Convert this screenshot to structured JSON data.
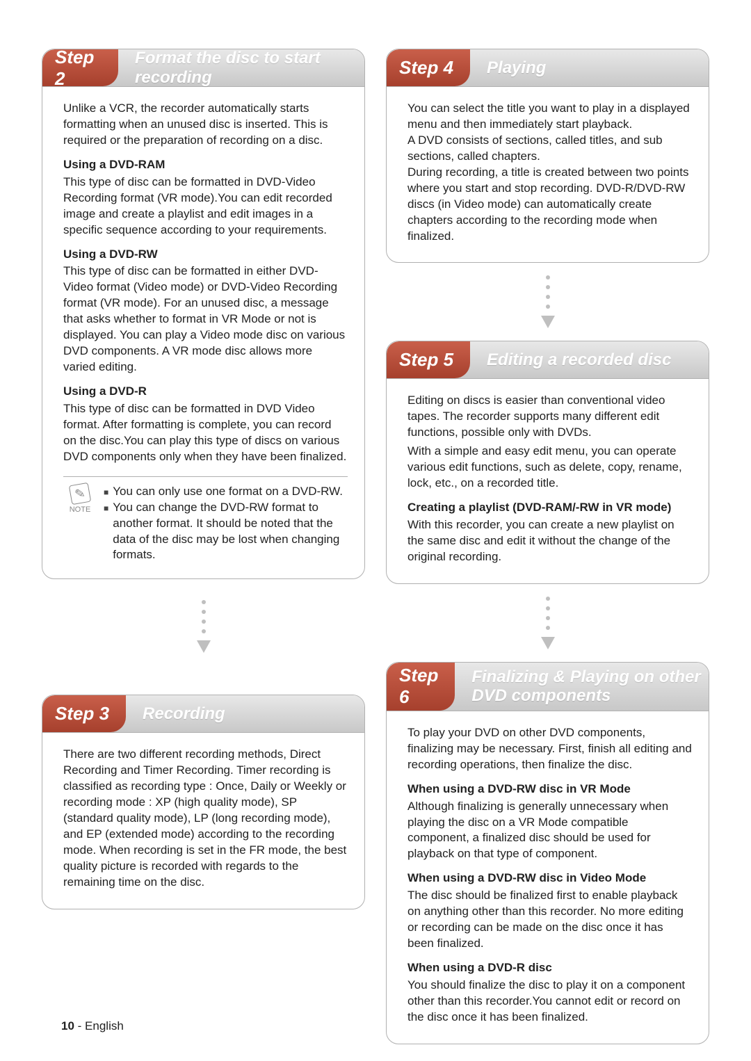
{
  "colors": {
    "tab_gradient_top": "#c95f4a",
    "tab_gradient_bottom": "#a6402d",
    "header_gradient_top": "#e8e8e8",
    "header_gradient_bottom": "#c8c8c8",
    "border": "#b0b0b0",
    "arrow": "#bfbfbf",
    "text": "#222222"
  },
  "typography": {
    "body_fontsize_pt": 13,
    "step_number_fontsize_pt": 20,
    "step_title_fontsize_pt": 18,
    "font_family": "Arial"
  },
  "step2": {
    "tab": "Step 2",
    "title": "Format the disc to start recording",
    "intro": "Unlike a VCR, the recorder automatically starts formatting when an unused disc is inserted. This is required or the preparation of recording on a disc.",
    "sec1_head": "Using a DVD-RAM",
    "sec1_body": "This type of disc can be formatted in DVD-Video Recording format (VR mode).You can edit recorded image and create a playlist and edit images in a specific sequence according to your requirements.",
    "sec2_head": "Using a DVD-RW",
    "sec2_body": "This type of disc can be formatted in either DVD-Video format (Video mode) or DVD-Video Recording format (VR mode). For an unused disc, a message that asks whether to format in VR Mode or not is displayed. You can play a Video mode disc on various DVD components. A VR mode disc allows more varied editing.",
    "sec3_head": "Using a DVD-R",
    "sec3_body": "This type of disc can be formatted in DVD Video format. After formatting is complete, you can record on the disc.You can play this type of discs on various DVD components only when they have been finalized.",
    "note_label": "NOTE",
    "note1": "You can only use one format on a DVD-RW.",
    "note2": "You can change the DVD-RW format to another format. It should be noted that the data of the disc may be lost when changing formats."
  },
  "step3": {
    "tab": "Step 3",
    "title": "Recording",
    "body": "There are two different recording methods, Direct Recording and Timer Recording. Timer recording is classified as recording type : Once, Daily or Weekly or recording mode : XP (high quality mode), SP (standard quality mode), LP (long recording mode), and EP (extended mode) according to the recording mode. When recording is set in the FR mode, the best quality picture is recorded with regards to the remaining time on the disc."
  },
  "step4": {
    "tab": "Step 4",
    "title": "Playing",
    "body": "You can select the title you want to play in a displayed menu and then immediately start playback.\nA DVD consists of sections, called titles, and sub sections, called chapters.\nDuring recording, a title is created between two points where you start and stop recording. DVD-R/DVD-RW discs (in Video mode) can automatically create chapters according to the recording mode when finalized."
  },
  "step5": {
    "tab": "Step 5",
    "title": "Editing a recorded disc",
    "p1": "Editing on discs is easier than conventional video tapes. The recorder supports many different edit functions, possible only with DVDs.",
    "p2": "With a simple and easy edit menu, you can operate various edit functions, such as delete, copy, rename, lock, etc., on a recorded title.",
    "sec_head": "Creating a playlist (DVD-RAM/-RW in VR mode)",
    "sec_body": "With this recorder, you can create a new playlist on the same disc and edit it without the change of the original recording."
  },
  "step6": {
    "tab": "Step 6",
    "title": "Finalizing & Playing on other DVD components",
    "intro": "To play your DVD on other DVD components, finalizing may be necessary. First, finish all editing and recording operations, then finalize the disc.",
    "s1_head": "When using a DVD-RW disc in VR Mode",
    "s1_body": "Although finalizing is generally unnecessary when playing the disc on a VR Mode compatible component, a finalized disc should be used for playback on that type of component.",
    "s2_head": "When using a DVD-RW disc in Video Mode",
    "s2_body": "The disc should be finalized first to enable playback on anything other than this recorder. No more editing or recording can be made on the disc once it has been finalized.",
    "s3_head": "When using a DVD-R disc",
    "s3_body": "You should finalize the disc to play it on a component other than this recorder.You cannot edit or record on the disc once it has been finalized."
  },
  "footer": {
    "page_number": "10",
    "lang": "English"
  }
}
